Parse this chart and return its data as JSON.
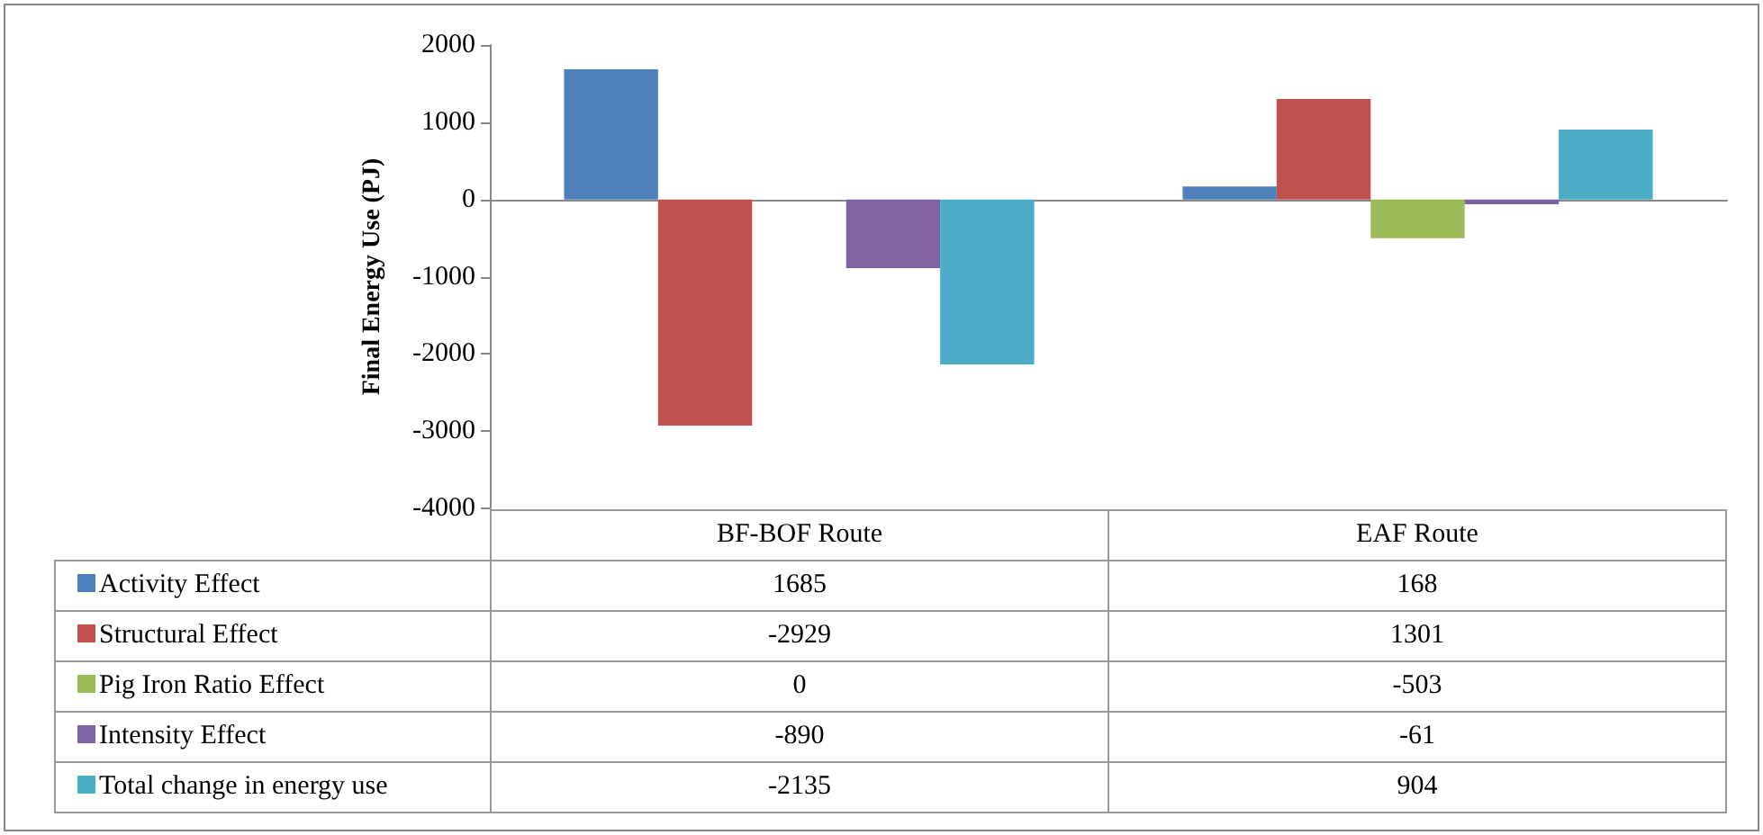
{
  "chart_data": {
    "type": "bar",
    "ylabel": "Final Energy Use (PJ)",
    "categories": [
      "BF-BOF Route",
      "EAF Route"
    ],
    "series": [
      {
        "name": "Activity Effect",
        "color": "#4f81bd",
        "values": [
          1685,
          168
        ]
      },
      {
        "name": "Structural Effect",
        "color": "#c0504d",
        "values": [
          -2929,
          1301
        ]
      },
      {
        "name": "Pig Iron Ratio Effect",
        "color": "#9bbb59",
        "values": [
          0,
          -503
        ]
      },
      {
        "name": "Intensity Effect",
        "color": "#8064a2",
        "values": [
          -890,
          -61
        ]
      },
      {
        "name": "Total change in energy use",
        "color": "#4bacc6",
        "values": [
          -2135,
          904
        ]
      }
    ],
    "ylim": [
      -4000,
      2000
    ],
    "yticks": [
      -4000,
      -3000,
      -2000,
      -1000,
      0,
      1000,
      2000
    ],
    "legend": "bottom",
    "data_labels": true
  }
}
